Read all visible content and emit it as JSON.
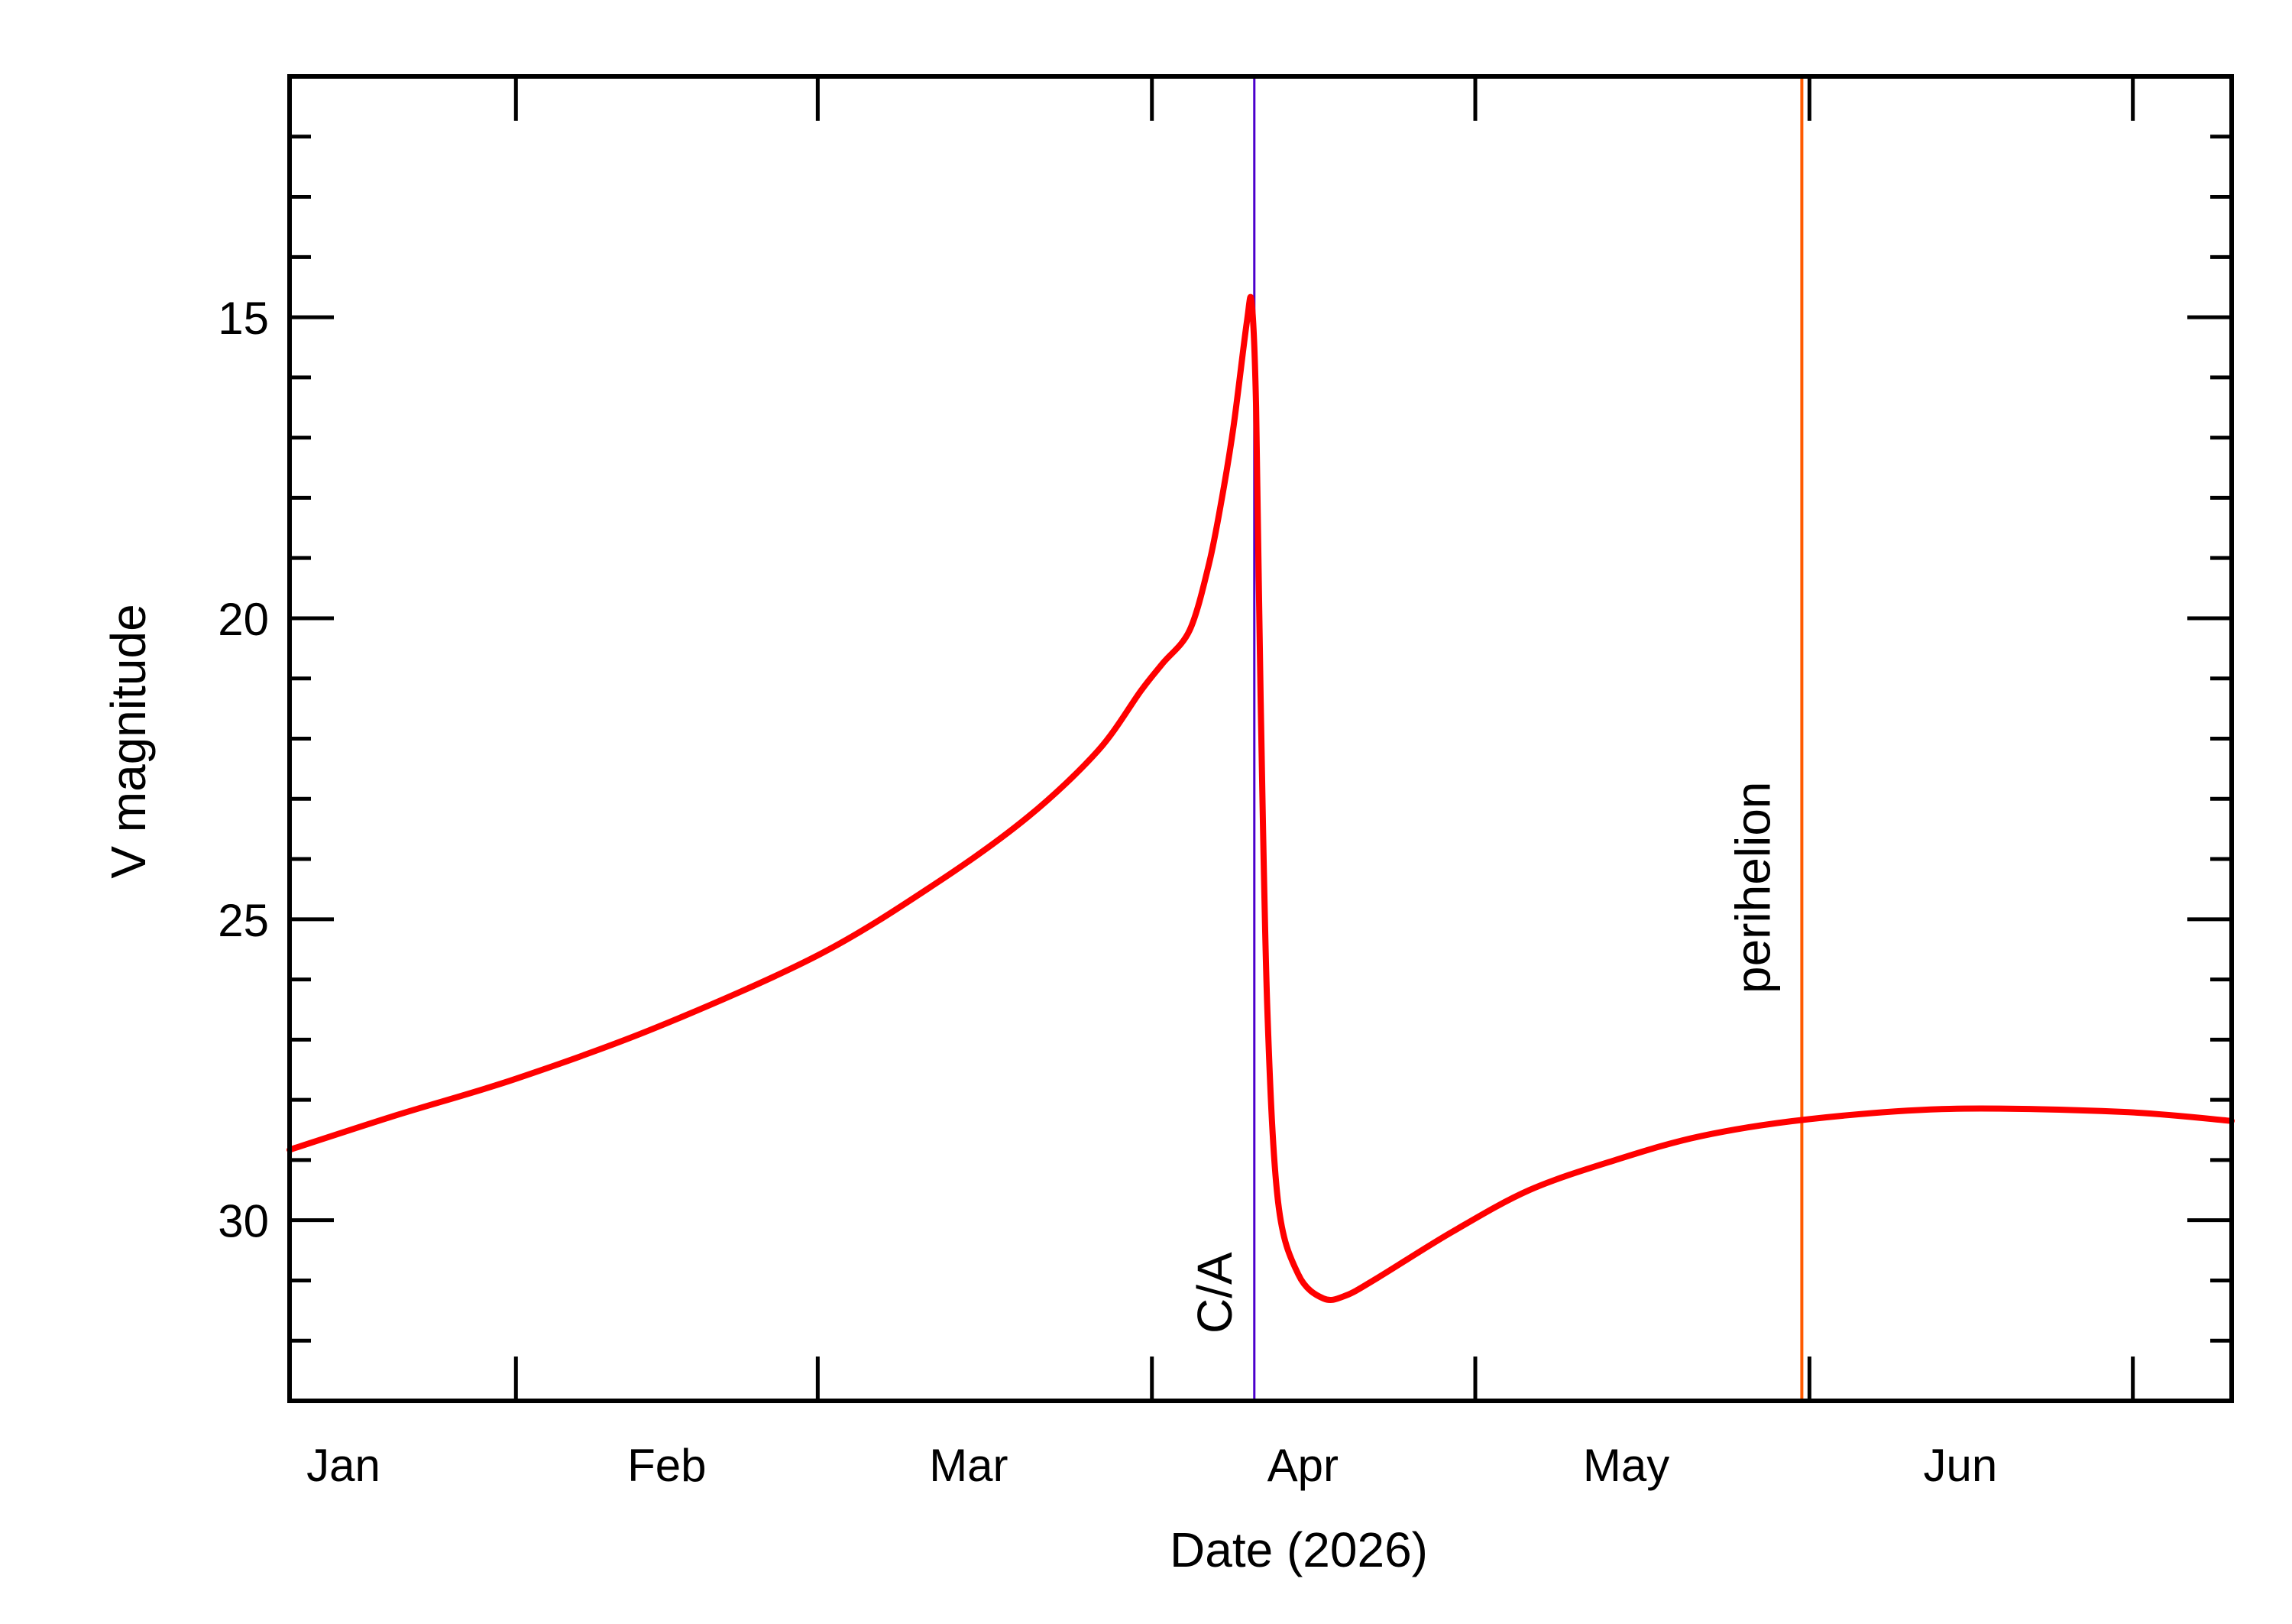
{
  "chart_data": {
    "type": "line",
    "title": "",
    "xlabel": "Date (2026)",
    "ylabel": "V magnitude",
    "xlim": [
      "2026-01-11T00:00",
      "2026-07-10T04:00"
    ],
    "ylim": [
      33,
      11
    ],
    "y_inverted": true,
    "grid": false,
    "x_ticks": [
      "2026-02-01",
      "2026-03-01",
      "2026-04-01",
      "2026-05-01",
      "2026-06-01",
      "2026-07-01"
    ],
    "x_tick_labels": [
      {
        "label": "Jan",
        "at": "2026-01-16"
      },
      {
        "label": "Feb",
        "at": "2026-02-15"
      },
      {
        "label": "Mar",
        "at": "2026-03-15"
      },
      {
        "label": "Apr",
        "at": "2026-04-15"
      },
      {
        "label": "May",
        "at": "2026-05-15"
      },
      {
        "label": "Jun",
        "at": "2026-06-15"
      }
    ],
    "y_major_ticks": [
      15,
      20,
      25,
      30
    ],
    "y_minor_step": 1,
    "series": [
      {
        "color": "#ff0000",
        "points": [
          [
            "2026-01-11T00:00",
            28.83
          ],
          [
            "2026-01-21T00:00",
            28.25
          ],
          [
            "2026-02-01T00:00",
            27.65
          ],
          [
            "2026-02-14T00:00",
            26.8
          ],
          [
            "2026-03-01T00:00",
            25.6
          ],
          [
            "2026-03-12T00:00",
            24.4
          ],
          [
            "2026-03-20T12:00",
            23.3
          ],
          [
            "2026-03-27T00:00",
            22.2
          ],
          [
            "2026-03-31T00:00",
            21.2
          ],
          [
            "2026-04-02T00:00",
            20.75
          ],
          [
            "2026-04-04T12:00",
            20.2
          ],
          [
            "2026-04-06T07:00",
            19.1
          ],
          [
            "2026-04-07T12:00",
            18.0
          ],
          [
            "2026-04-08T14:00",
            16.8
          ],
          [
            "2026-04-09T19:00",
            15.1
          ],
          [
            "2026-04-10T06:00",
            14.75
          ],
          [
            "2026-04-10T16:00",
            16.5
          ],
          [
            "2026-04-11T02:00",
            21.3
          ],
          [
            "2026-04-11T17:00",
            26.5
          ],
          [
            "2026-04-12T17:00",
            29.7
          ],
          [
            "2026-04-14T14:00",
            30.9
          ],
          [
            "2026-04-16T22:00",
            31.3
          ],
          [
            "2026-04-19T00:00",
            31.25
          ],
          [
            "2026-04-22T00:00",
            30.95
          ],
          [
            "2026-04-28T19:00",
            30.2
          ],
          [
            "2026-05-06T00:00",
            29.5
          ],
          [
            "2026-05-14T00:00",
            29.0
          ],
          [
            "2026-05-22T00:00",
            28.6
          ],
          [
            "2026-06-01T00:00",
            28.32
          ],
          [
            "2026-06-14T00:00",
            28.15
          ],
          [
            "2026-06-30T00:00",
            28.2
          ],
          [
            "2026-07-10T04:00",
            28.35
          ]
        ]
      }
    ],
    "annotations": [
      {
        "label": "C/A",
        "date": "2026-04-10T12:00",
        "color": "#4b00cc"
      },
      {
        "label": "perihelion",
        "date": "2026-05-31T07:00",
        "color": "#ff5a00"
      }
    ]
  }
}
